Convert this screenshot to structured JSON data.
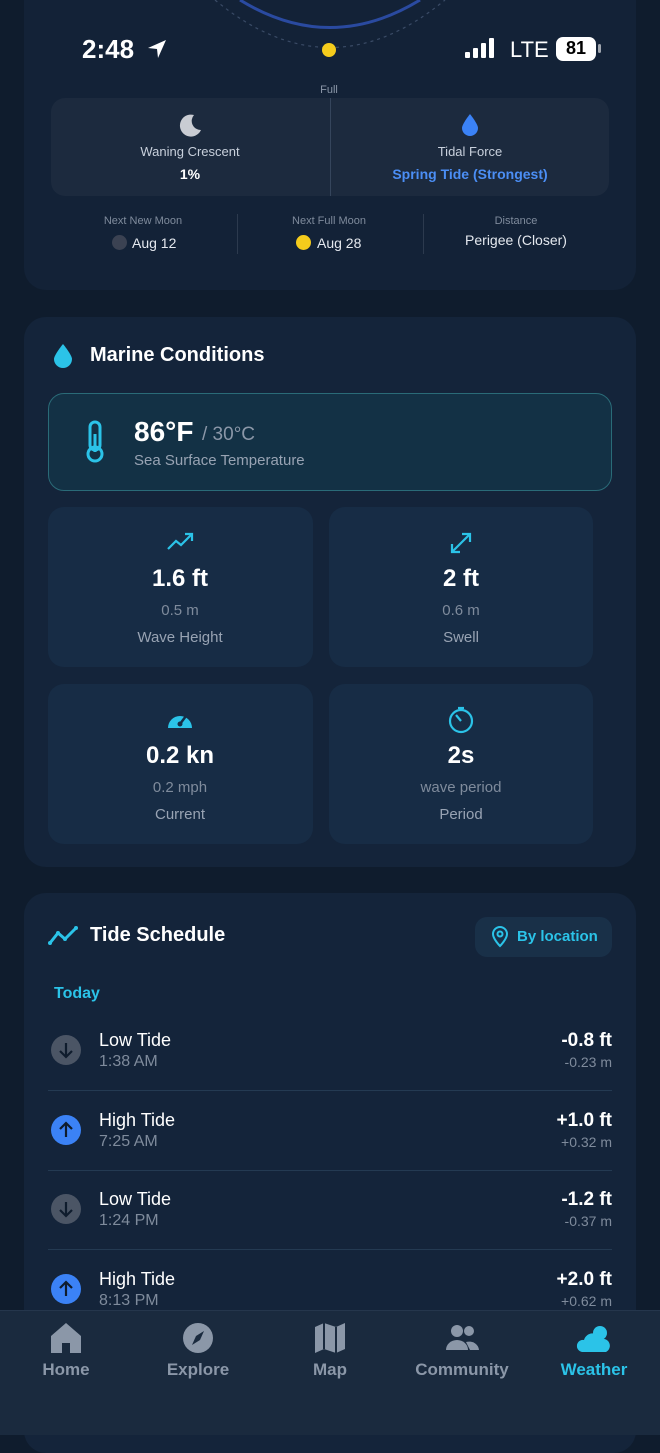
{
  "status_bar": {
    "time": "2:48",
    "network": "LTE",
    "battery": "81"
  },
  "moon_card": {
    "orbit_label": "Full",
    "phase": {
      "name": "Waning Crescent",
      "illumination": "1%"
    },
    "tidal_force": {
      "label": "Tidal Force",
      "value": "Spring Tide (Strongest)"
    },
    "next_new_moon": {
      "label": "Next New Moon",
      "date": "Aug 12"
    },
    "next_full_moon": {
      "label": "Next Full Moon",
      "date": "Aug 28"
    },
    "distance": {
      "label": "Distance",
      "value": "Perigee (Closer)"
    }
  },
  "marine": {
    "title": "Marine Conditions",
    "sea_temp": {
      "value": "86°F",
      "alt": "/ 30°C",
      "label": "Sea Surface Temperature"
    },
    "metrics": [
      {
        "icon": "trend",
        "value": "1.6 ft",
        "sub": "0.5 m",
        "label": "Wave Height"
      },
      {
        "icon": "expand",
        "value": "2 ft",
        "sub": "0.6 m",
        "label": "Swell"
      },
      {
        "icon": "gauge",
        "value": "0.2 kn",
        "sub": "0.2 mph",
        "label": "Current"
      },
      {
        "icon": "timer",
        "value": "2s",
        "sub": "wave period",
        "label": "Period"
      }
    ]
  },
  "tides": {
    "title": "Tide Schedule",
    "location_button": "By location",
    "day": "Today",
    "entries": [
      {
        "direction": "down",
        "type": "Low Tide",
        "time": "1:38 AM",
        "height": "-0.8 ft",
        "height_m": "-0.23 m"
      },
      {
        "direction": "up",
        "type": "High Tide",
        "time": "7:25 AM",
        "height": "+1.0 ft",
        "height_m": "+0.32 m"
      },
      {
        "direction": "down",
        "type": "Low Tide",
        "time": "1:24 PM",
        "height": "-1.2 ft",
        "height_m": "-0.37 m"
      },
      {
        "direction": "up",
        "type": "High Tide",
        "time": "8:13 PM",
        "height": "+2.0 ft",
        "height_m": "+0.62 m"
      }
    ]
  },
  "nav": [
    {
      "icon": "home",
      "label": "Home",
      "active": false
    },
    {
      "icon": "explore",
      "label": "Explore",
      "active": false
    },
    {
      "icon": "map",
      "label": "Map",
      "active": false
    },
    {
      "icon": "community",
      "label": "Community",
      "active": false
    },
    {
      "icon": "weather",
      "label": "Weather",
      "active": true
    }
  ]
}
